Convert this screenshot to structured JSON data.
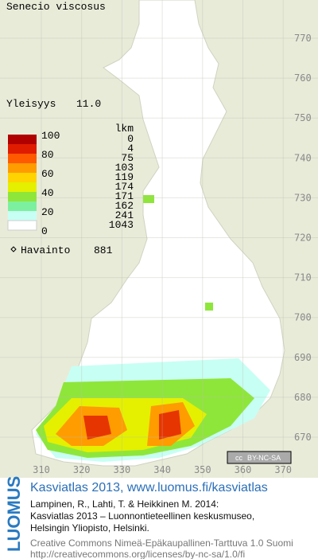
{
  "map": {
    "title": "Senecio viscosus",
    "frequency": {
      "label": "Yleisyys",
      "value": "11.0"
    },
    "legend": {
      "scale": [
        100,
        80,
        60,
        40,
        20,
        0
      ],
      "count_header": "lkm",
      "counts": [
        0,
        4,
        75,
        103,
        119,
        174,
        171,
        162,
        241,
        1043
      ],
      "colors": [
        "#b00000",
        "#e01c00",
        "#ff5a00",
        "#ff9c00",
        "#ffd400",
        "#e4f000",
        "#8fe63a",
        "#7df0a0",
        "#c8fff4",
        "#ffffff"
      ]
    },
    "observations": {
      "label": "Havainto",
      "value": 881
    },
    "grid": {
      "yticks": [
        770,
        760,
        750,
        740,
        730,
        720,
        710,
        700,
        690,
        680,
        670
      ],
      "xticks": [
        310,
        320,
        330,
        340,
        350,
        360,
        370
      ]
    },
    "badge": {
      "cc": "cc",
      "license": "BY-NC-SA"
    }
  },
  "footer": {
    "brand": "LUOMUS",
    "link": "Kasviatlas 2013, www.luomus.fi/kasviatlas",
    "citation": [
      "Lampinen, R., Lahti, T. & Heikkinen M. 2014:",
      "Kasviatlas 2013 – Luonnontieteellinen keskusmuseo,",
      "Helsingin Yliopisto, Helsinki."
    ],
    "license": [
      "Creative Commons Nimeä-Epäkaupallinen-Tarttuva 1.0 Suomi",
      "http://creativecommons.org/licenses/by-nc-sa/1.0/fi"
    ]
  }
}
